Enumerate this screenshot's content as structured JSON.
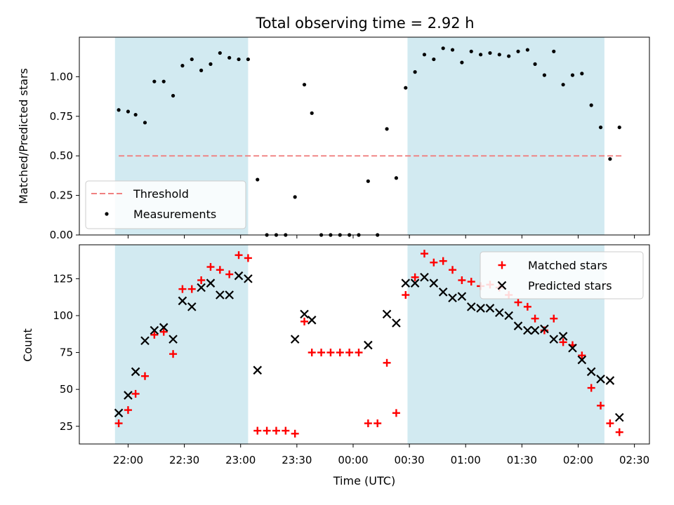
{
  "chart_data": [
    {
      "type": "scatter",
      "title": "Total observing time = 2.92 h",
      "ylabel": "Matched/Predicted stars",
      "xlabel": "",
      "ylim": [
        0,
        1.25
      ],
      "yticks": [
        0.0,
        0.25,
        0.5,
        0.75,
        1.0
      ],
      "yticklabels": [
        "0.00",
        "0.25",
        "0.50",
        "0.75",
        "1.00"
      ],
      "threshold": 0.5,
      "legend": {
        "location": "lower-left",
        "entries": [
          "Threshold",
          "Measurements"
        ]
      },
      "shaded_spans_color": "#add8e6",
      "threshold_color": "#f08080",
      "series": [
        {
          "name": "Measurements",
          "color": "#000000",
          "points": [
            [
              "21:55",
              0.79
            ],
            [
              "22:00",
              0.78
            ],
            [
              "22:04",
              0.76
            ],
            [
              "22:09",
              0.71
            ],
            [
              "22:14",
              0.97
            ],
            [
              "22:19",
              0.97
            ],
            [
              "22:24",
              0.88
            ],
            [
              "22:29",
              1.07
            ],
            [
              "22:34",
              1.11
            ],
            [
              "22:39",
              1.04
            ],
            [
              "22:44",
              1.08
            ],
            [
              "22:49",
              1.15
            ],
            [
              "22:54",
              1.12
            ],
            [
              "22:59",
              1.11
            ],
            [
              "23:04",
              1.11
            ],
            [
              "23:09",
              0.35
            ],
            [
              "23:14",
              0.0
            ],
            [
              "23:19",
              0.0
            ],
            [
              "23:24",
              0.0
            ],
            [
              "23:29",
              0.24
            ],
            [
              "23:34",
              0.95
            ],
            [
              "23:38",
              0.77
            ],
            [
              "23:43",
              0.0
            ],
            [
              "23:48",
              0.0
            ],
            [
              "23:53",
              0.0
            ],
            [
              "23:58",
              0.0
            ],
            [
              "00:03",
              0.0
            ],
            [
              "00:08",
              0.34
            ],
            [
              "00:13",
              0.0
            ],
            [
              "00:18",
              0.67
            ],
            [
              "00:23",
              0.36
            ],
            [
              "00:28",
              0.93
            ],
            [
              "00:33",
              1.03
            ],
            [
              "00:38",
              1.14
            ],
            [
              "00:43",
              1.11
            ],
            [
              "00:48",
              1.18
            ],
            [
              "00:53",
              1.17
            ],
            [
              "00:58",
              1.09
            ],
            [
              "01:03",
              1.16
            ],
            [
              "01:08",
              1.14
            ],
            [
              "01:13",
              1.15
            ],
            [
              "01:18",
              1.14
            ],
            [
              "01:23",
              1.13
            ],
            [
              "01:28",
              1.16
            ],
            [
              "01:33",
              1.17
            ],
            [
              "01:37",
              1.08
            ],
            [
              "01:42",
              1.01
            ],
            [
              "01:47",
              1.16
            ],
            [
              "01:52",
              0.95
            ],
            [
              "01:57",
              1.01
            ],
            [
              "02:02",
              1.02
            ],
            [
              "02:07",
              0.82
            ],
            [
              "02:12",
              0.68
            ],
            [
              "02:17",
              0.48
            ],
            [
              "02:22",
              0.68
            ]
          ]
        }
      ]
    },
    {
      "type": "scatter",
      "title": "",
      "xlabel": "Time (UTC)",
      "ylabel": "Count",
      "ylim": [
        13,
        148
      ],
      "yticks": [
        25,
        50,
        75,
        100,
        125
      ],
      "xticks": [
        "22:00",
        "22:30",
        "23:00",
        "23:30",
        "00:00",
        "00:30",
        "01:00",
        "01:30",
        "02:00",
        "02:30"
      ],
      "legend": {
        "location": "top-right",
        "entries": [
          "Matched stars",
          "Predicted stars"
        ]
      },
      "shaded_spans": [
        [
          "21:53",
          "23:04"
        ],
        [
          "00:29",
          "02:14"
        ]
      ],
      "series": [
        {
          "name": "Matched stars",
          "color": "#ff0000",
          "marker": "plus",
          "points": [
            [
              "21:55",
              27
            ],
            [
              "22:00",
              36
            ],
            [
              "22:04",
              47
            ],
            [
              "22:09",
              59
            ],
            [
              "22:14",
              87
            ],
            [
              "22:19",
              89
            ],
            [
              "22:24",
              74
            ],
            [
              "22:29",
              118
            ],
            [
              "22:34",
              118
            ],
            [
              "22:39",
              124
            ],
            [
              "22:44",
              133
            ],
            [
              "22:49",
              131
            ],
            [
              "22:54",
              128
            ],
            [
              "22:59",
              141
            ],
            [
              "23:04",
              139
            ],
            [
              "23:09",
              22
            ],
            [
              "23:14",
              22
            ],
            [
              "23:19",
              22
            ],
            [
              "23:24",
              22
            ],
            [
              "23:29",
              20
            ],
            [
              "23:34",
              96
            ],
            [
              "23:38",
              75
            ],
            [
              "23:43",
              75
            ],
            [
              "23:48",
              75
            ],
            [
              "23:53",
              75
            ],
            [
              "23:58",
              75
            ],
            [
              "00:03",
              75
            ],
            [
              "00:08",
              27
            ],
            [
              "00:13",
              27
            ],
            [
              "00:18",
              68
            ],
            [
              "00:23",
              34
            ],
            [
              "00:28",
              114
            ],
            [
              "00:33",
              126
            ],
            [
              "00:38",
              142
            ],
            [
              "00:43",
              136
            ],
            [
              "00:48",
              137
            ],
            [
              "00:53",
              131
            ],
            [
              "00:58",
              124
            ],
            [
              "01:03",
              123
            ],
            [
              "01:08",
              120
            ],
            [
              "01:13",
              121
            ],
            [
              "01:18",
              119
            ],
            [
              "01:23",
              114
            ],
            [
              "01:28",
              109
            ],
            [
              "01:33",
              106
            ],
            [
              "01:37",
              98
            ],
            [
              "01:42",
              90
            ],
            [
              "01:47",
              98
            ],
            [
              "01:52",
              82
            ],
            [
              "01:57",
              80
            ],
            [
              "02:02",
              73
            ],
            [
              "02:07",
              51
            ],
            [
              "02:12",
              39
            ],
            [
              "02:17",
              27
            ],
            [
              "02:22",
              21
            ]
          ]
        },
        {
          "name": "Predicted stars",
          "color": "#000000",
          "marker": "x",
          "points": [
            [
              "21:55",
              34
            ],
            [
              "22:00",
              46
            ],
            [
              "22:04",
              62
            ],
            [
              "22:09",
              83
            ],
            [
              "22:14",
              90
            ],
            [
              "22:19",
              92
            ],
            [
              "22:24",
              84
            ],
            [
              "22:29",
              110
            ],
            [
              "22:34",
              106
            ],
            [
              "22:39",
              119
            ],
            [
              "22:44",
              122
            ],
            [
              "22:49",
              114
            ],
            [
              "22:54",
              114
            ],
            [
              "22:59",
              127
            ],
            [
              "23:04",
              125
            ],
            [
              "23:09",
              63
            ],
            [
              "23:29",
              84
            ],
            [
              "23:34",
              101
            ],
            [
              "23:38",
              97
            ],
            [
              "00:08",
              80
            ],
            [
              "00:18",
              101
            ],
            [
              "00:23",
              95
            ],
            [
              "00:28",
              122
            ],
            [
              "00:33",
              122
            ],
            [
              "00:38",
              126
            ],
            [
              "00:43",
              122
            ],
            [
              "00:48",
              116
            ],
            [
              "00:53",
              112
            ],
            [
              "00:58",
              113
            ],
            [
              "01:03",
              106
            ],
            [
              "01:08",
              105
            ],
            [
              "01:13",
              105
            ],
            [
              "01:18",
              102
            ],
            [
              "01:23",
              100
            ],
            [
              "01:28",
              93
            ],
            [
              "01:33",
              90
            ],
            [
              "01:37",
              90
            ],
            [
              "01:42",
              91
            ],
            [
              "01:47",
              84
            ],
            [
              "01:52",
              86
            ],
            [
              "01:57",
              78
            ],
            [
              "02:02",
              70
            ],
            [
              "02:07",
              62
            ],
            [
              "02:12",
              57
            ],
            [
              "02:17",
              56
            ],
            [
              "02:22",
              31
            ]
          ]
        }
      ]
    }
  ]
}
